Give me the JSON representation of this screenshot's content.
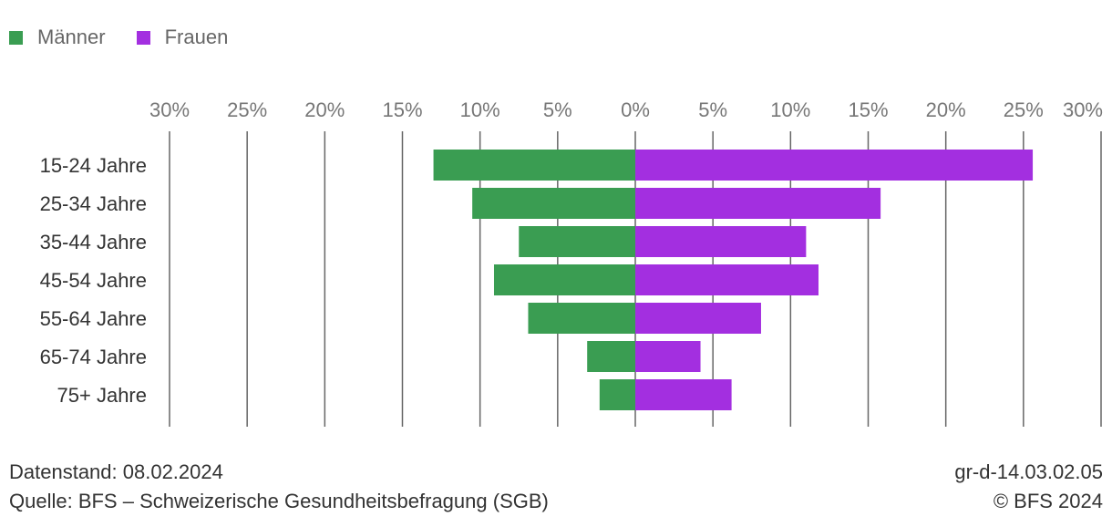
{
  "legend": {
    "men_label": "Männer",
    "women_label": "Frauen"
  },
  "colors": {
    "men": "#3a9d52",
    "women": "#a32fe0",
    "grid": "#666666",
    "tick_text": "#777777",
    "category_text": "#333333"
  },
  "chart_data": {
    "type": "bar",
    "orientation": "horizontal-diverging",
    "title": "",
    "categories": [
      "15-24 Jahre",
      "25-34 Jahre",
      "35-44 Jahre",
      "45-54 Jahre",
      "55-64 Jahre",
      "65-74 Jahre",
      "75+ Jahre"
    ],
    "series": [
      {
        "name": "Männer",
        "side": "left",
        "values": [
          13.0,
          10.5,
          7.5,
          9.1,
          6.9,
          3.1,
          2.3
        ]
      },
      {
        "name": "Frauen",
        "side": "right",
        "values": [
          25.6,
          15.8,
          11.0,
          11.8,
          8.1,
          4.2,
          6.2
        ]
      }
    ],
    "x_ticks": [
      "30%",
      "25%",
      "20%",
      "15%",
      "10%",
      "5%",
      "0%",
      "5%",
      "10%",
      "15%",
      "20%",
      "25%",
      "30%"
    ],
    "xlim": [
      -30,
      30
    ],
    "grid": true,
    "legend_position": "top-left"
  },
  "footer": {
    "date_line": "Datenstand: 08.02.2024",
    "source_line": "Quelle: BFS – Schweizerische Gesundheitsbefragung (SGB)",
    "code": "gr-d-14.03.02.05",
    "copyright": "© BFS 2024"
  }
}
